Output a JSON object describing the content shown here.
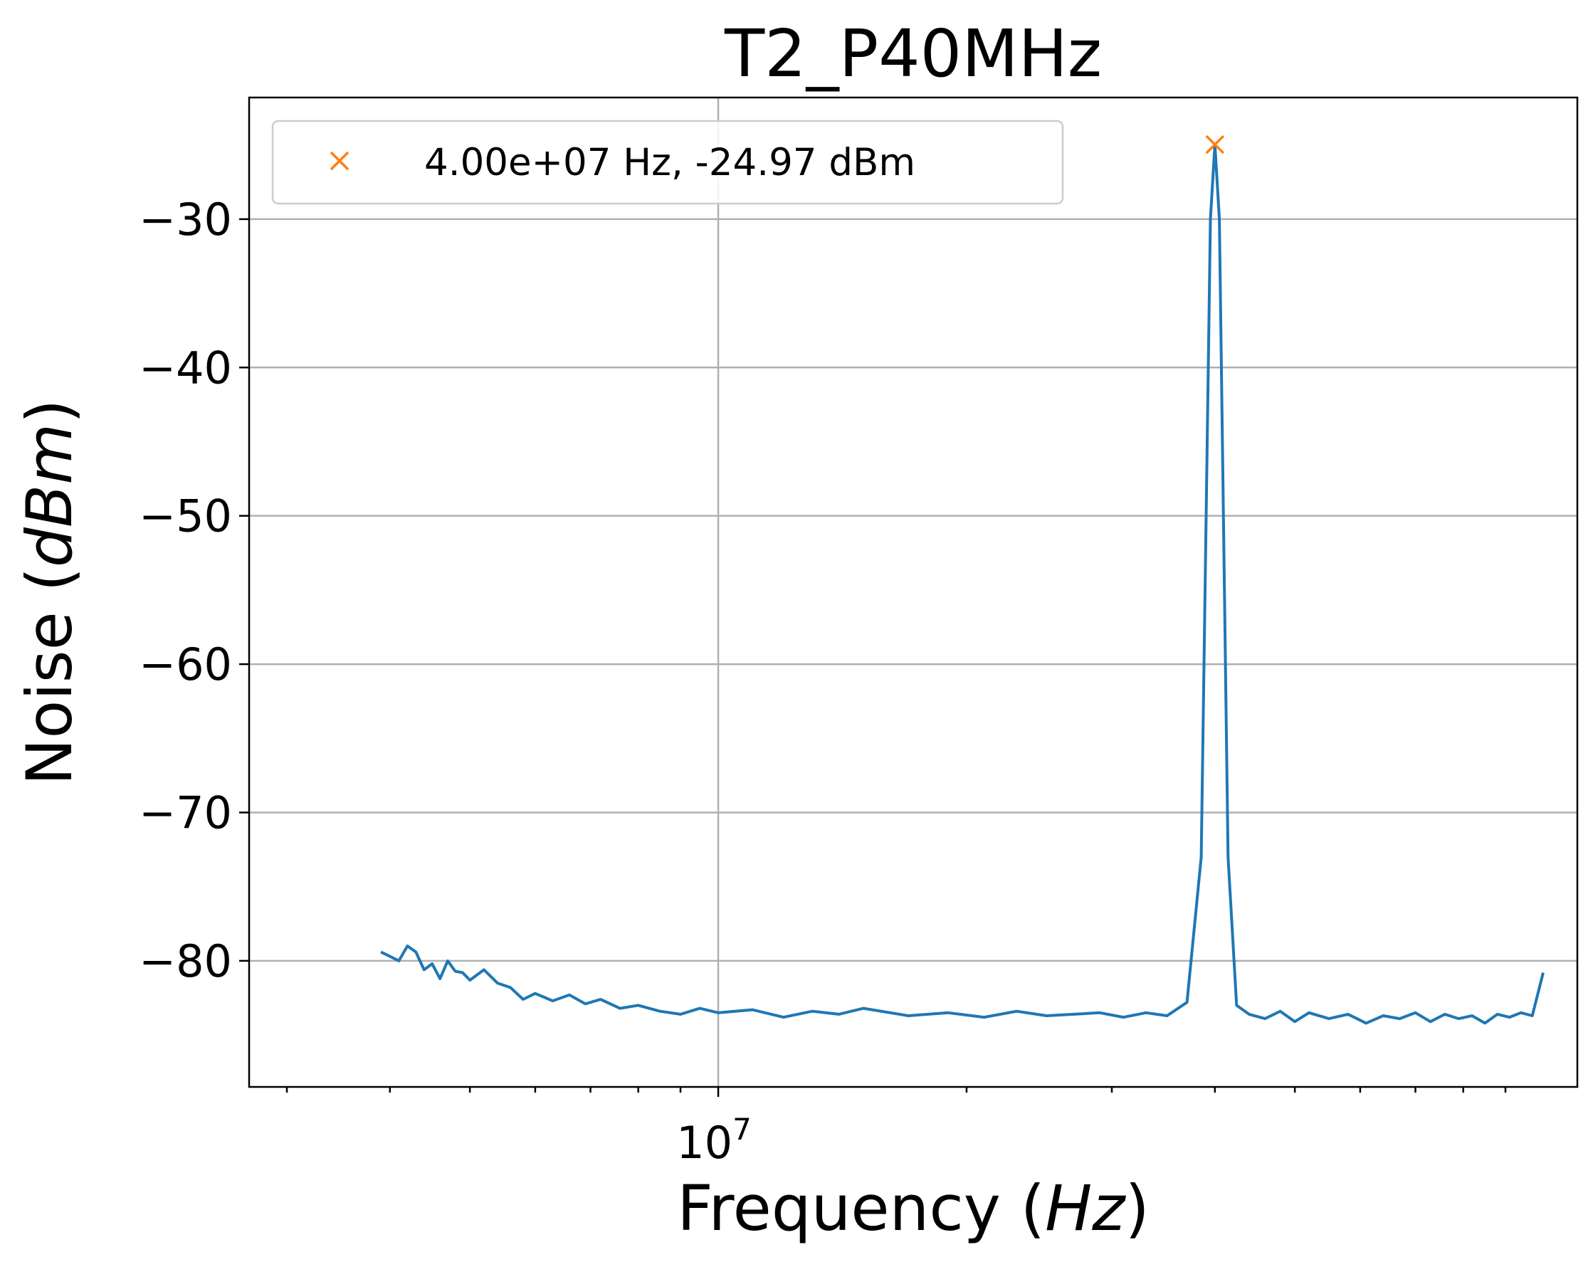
{
  "chart_data": {
    "type": "line",
    "title": "T2_P40MHz",
    "xlabel": "Frequency",
    "xlabel_unit": "Hz",
    "ylabel": "Noise",
    "ylabel_unit": "dBm",
    "x_scale": "log",
    "xlim": [
      2700000,
      110000000
    ],
    "ylim": [
      -88.5,
      -21.8
    ],
    "x_ticks": [
      {
        "value": 10000000,
        "base": "10",
        "exponent": "7"
      }
    ],
    "y_ticks": [
      {
        "value": -30,
        "label": "−30"
      },
      {
        "value": -40,
        "label": "−40"
      },
      {
        "value": -50,
        "label": "−50"
      },
      {
        "value": -60,
        "label": "−60"
      },
      {
        "value": -70,
        "label": "−70"
      },
      {
        "value": -80,
        "label": "−80"
      }
    ],
    "grid": true,
    "legend_position": "top-left",
    "series": [
      {
        "color": "#1f77b4",
        "x": [
          3900000,
          4000000,
          4100000,
          4200000,
          4300000,
          4400000,
          4500000,
          4600000,
          4700000,
          4800000,
          4900000,
          5000000,
          5200000,
          5400000,
          5600000,
          5800000,
          6000000,
          6300000,
          6600000,
          6900000,
          7200000,
          7600000,
          8000000,
          8500000,
          9000000,
          9500000,
          10000000,
          11000000,
          12000000,
          13000000,
          14000000,
          15000000,
          17000000,
          19000000,
          21000000,
          23000000,
          25000000,
          27000000,
          29000000,
          31000000,
          33000000,
          35000000,
          37000000,
          38500000,
          39500000,
          40000000,
          40500000,
          41500000,
          42500000,
          44000000,
          46000000,
          48000000,
          50000000,
          52000000,
          55000000,
          58000000,
          61000000,
          64000000,
          67000000,
          70000000,
          73000000,
          76000000,
          79000000,
          82000000,
          85000000,
          88000000,
          91000000,
          94000000,
          97000000,
          100000000
        ],
        "y": [
          -79.4,
          -79.7,
          -80.0,
          -79.0,
          -79.4,
          -80.6,
          -80.2,
          -81.2,
          -80.0,
          -80.7,
          -80.8,
          -81.3,
          -80.6,
          -81.5,
          -81.8,
          -82.6,
          -82.2,
          -82.7,
          -82.3,
          -82.9,
          -82.6,
          -83.2,
          -83.0,
          -83.4,
          -83.6,
          -83.2,
          -83.5,
          -83.3,
          -83.8,
          -83.4,
          -83.6,
          -83.2,
          -83.7,
          -83.5,
          -83.8,
          -83.4,
          -83.7,
          -83.6,
          -83.5,
          -83.8,
          -83.5,
          -83.7,
          -82.8,
          -73.0,
          -30.0,
          -24.97,
          -30.0,
          -73.0,
          -83.0,
          -83.6,
          -83.9,
          -83.4,
          -84.1,
          -83.5,
          -83.9,
          -83.6,
          -84.2,
          -83.7,
          -83.9,
          -83.5,
          -84.1,
          -83.6,
          -83.9,
          -83.7,
          -84.2,
          -83.6,
          -83.8,
          -83.5,
          -83.7,
          -80.8
        ]
      }
    ],
    "marker": {
      "x": 40000000,
      "y": -24.97,
      "color": "#ff7f0e",
      "shape": "x",
      "label": "4.00e+07 Hz, -24.97 dBm"
    }
  }
}
